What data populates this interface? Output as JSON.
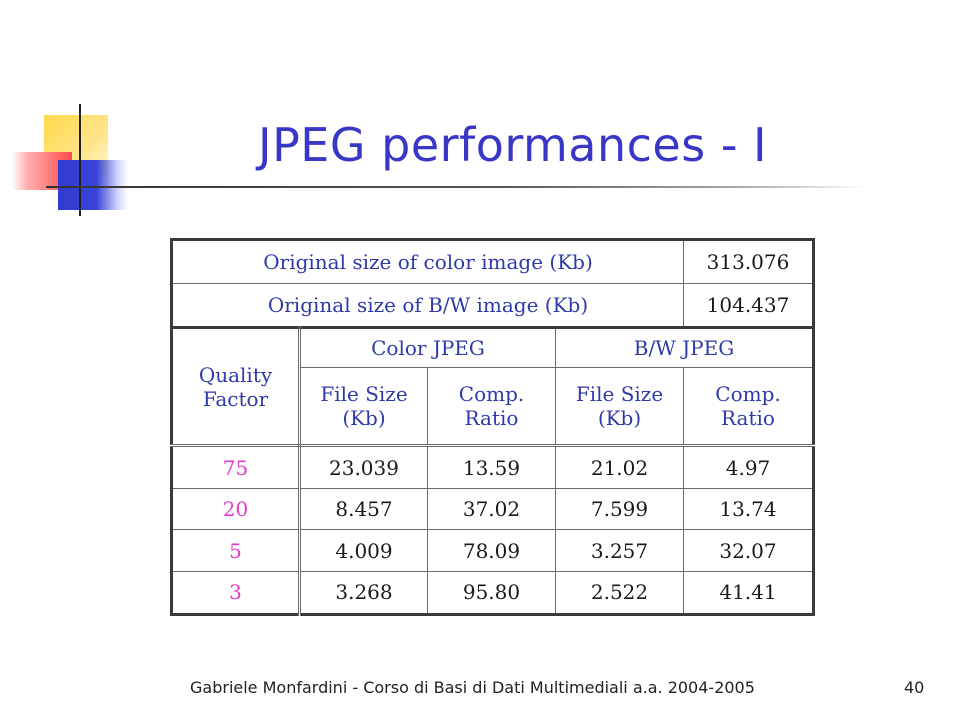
{
  "slide": {
    "title": "JPEG performances - I",
    "footer": "Gabriele Monfardini - Corso di Basi di Dati Multimediali  a.a. 2004-2005",
    "page_number": "40"
  },
  "table": {
    "original_sizes": [
      {
        "label": "Original size of color image (Kb)",
        "value": "313.076"
      },
      {
        "label": "Original size of B/W image (Kb)",
        "value": "104.437"
      }
    ],
    "header": {
      "quality_factor_line1": "Quality",
      "quality_factor_line2": "Factor",
      "color_group": "Color JPEG",
      "bw_group": "B/W JPEG",
      "file_size_line1": "File Size",
      "file_size_line2": "(Kb)",
      "comp_ratio_line1": "Comp.",
      "comp_ratio_line2": "Ratio"
    },
    "rows": [
      {
        "quality": "75",
        "color_size": "23.039",
        "color_ratio": "13.59",
        "bw_size": "21.02",
        "bw_ratio": "4.97"
      },
      {
        "quality": "20",
        "color_size": "8.457",
        "color_ratio": "37.02",
        "bw_size": "7.599",
        "bw_ratio": "13.74"
      },
      {
        "quality": "5",
        "color_size": "4.009",
        "color_ratio": "78.09",
        "bw_size": "3.257",
        "bw_ratio": "32.07"
      },
      {
        "quality": "3",
        "color_size": "3.268",
        "color_ratio": "95.80",
        "bw_size": "2.522",
        "bw_ratio": "41.41"
      }
    ]
  },
  "colors": {
    "title": "#3a37c8",
    "header_text": "#2e3aa8",
    "quality_text": "#e23bc8"
  }
}
